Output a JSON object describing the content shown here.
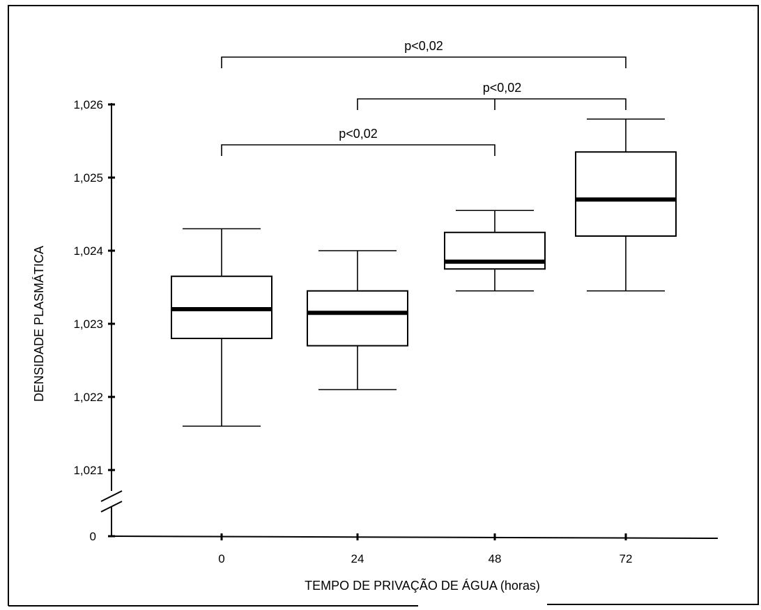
{
  "chart_data": {
    "type": "box",
    "xlabel": "TEMPO DE PRIVAÇÃO DE ÁGUA (horas)",
    "ylabel": "DENSIDADE PLASMÁTICA",
    "x_tick_labels": [
      "0",
      "24",
      "48",
      "72"
    ],
    "y_tick_labels": [
      "1,026",
      "1,025",
      "1,024",
      "1,023",
      "1,022",
      "1,021",
      "0"
    ],
    "y_tick_values": [
      1.026,
      1.025,
      1.024,
      1.023,
      1.022,
      1.021
    ],
    "ylim": [
      1.021,
      1.026
    ],
    "axis_break": true,
    "groups": [
      {
        "x": "0",
        "whisker_low": 1.0216,
        "q1": 1.0228,
        "median": 1.0232,
        "q3": 1.02365,
        "whisker_high": 1.0243
      },
      {
        "x": "24",
        "whisker_low": 1.0221,
        "q1": 1.0227,
        "median": 1.02315,
        "q3": 1.02345,
        "whisker_high": 1.024
      },
      {
        "x": "48",
        "whisker_low": 1.02345,
        "q1": 1.02375,
        "median": 1.02385,
        "q3": 1.02425,
        "whisker_high": 1.02455
      },
      {
        "x": "72",
        "whisker_low": 1.02345,
        "q1": 1.0242,
        "median": 1.0247,
        "q3": 1.02535,
        "whisker_high": 1.0258
      }
    ],
    "comparisons": [
      {
        "from": "0",
        "to": "72",
        "label": "p<0,02"
      },
      {
        "from": "24",
        "to": "72",
        "label": "p<0,02",
        "mid_tick": "48"
      },
      {
        "from": "0",
        "to": "48",
        "label": "p<0,02"
      }
    ]
  }
}
